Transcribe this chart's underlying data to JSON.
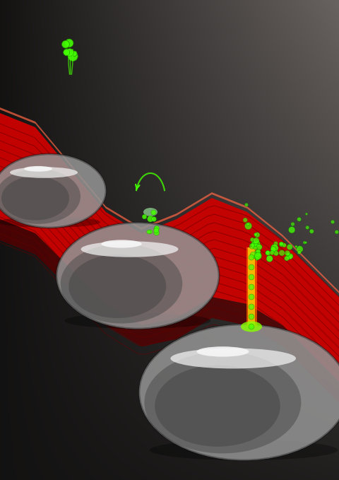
{
  "background_top": "#2a2a2a",
  "background_bottom": "#1a0000",
  "fig_width": 4.8,
  "fig_height": 6.79,
  "dpi": 100,
  "laser_red": "#cc0000",
  "laser_dark_red": "#880000",
  "laser_bright_red": "#ff2200",
  "electron_green": "#44ff00",
  "electron_dark_green": "#228800",
  "sphere_color": "#c0c0c0",
  "sphere_highlight": "#ffffff",
  "sphere_shadow": "#404040",
  "glow_yellow": "#ffdd00",
  "glow_green": "#88ff00",
  "beam_orange": "#ff6600"
}
